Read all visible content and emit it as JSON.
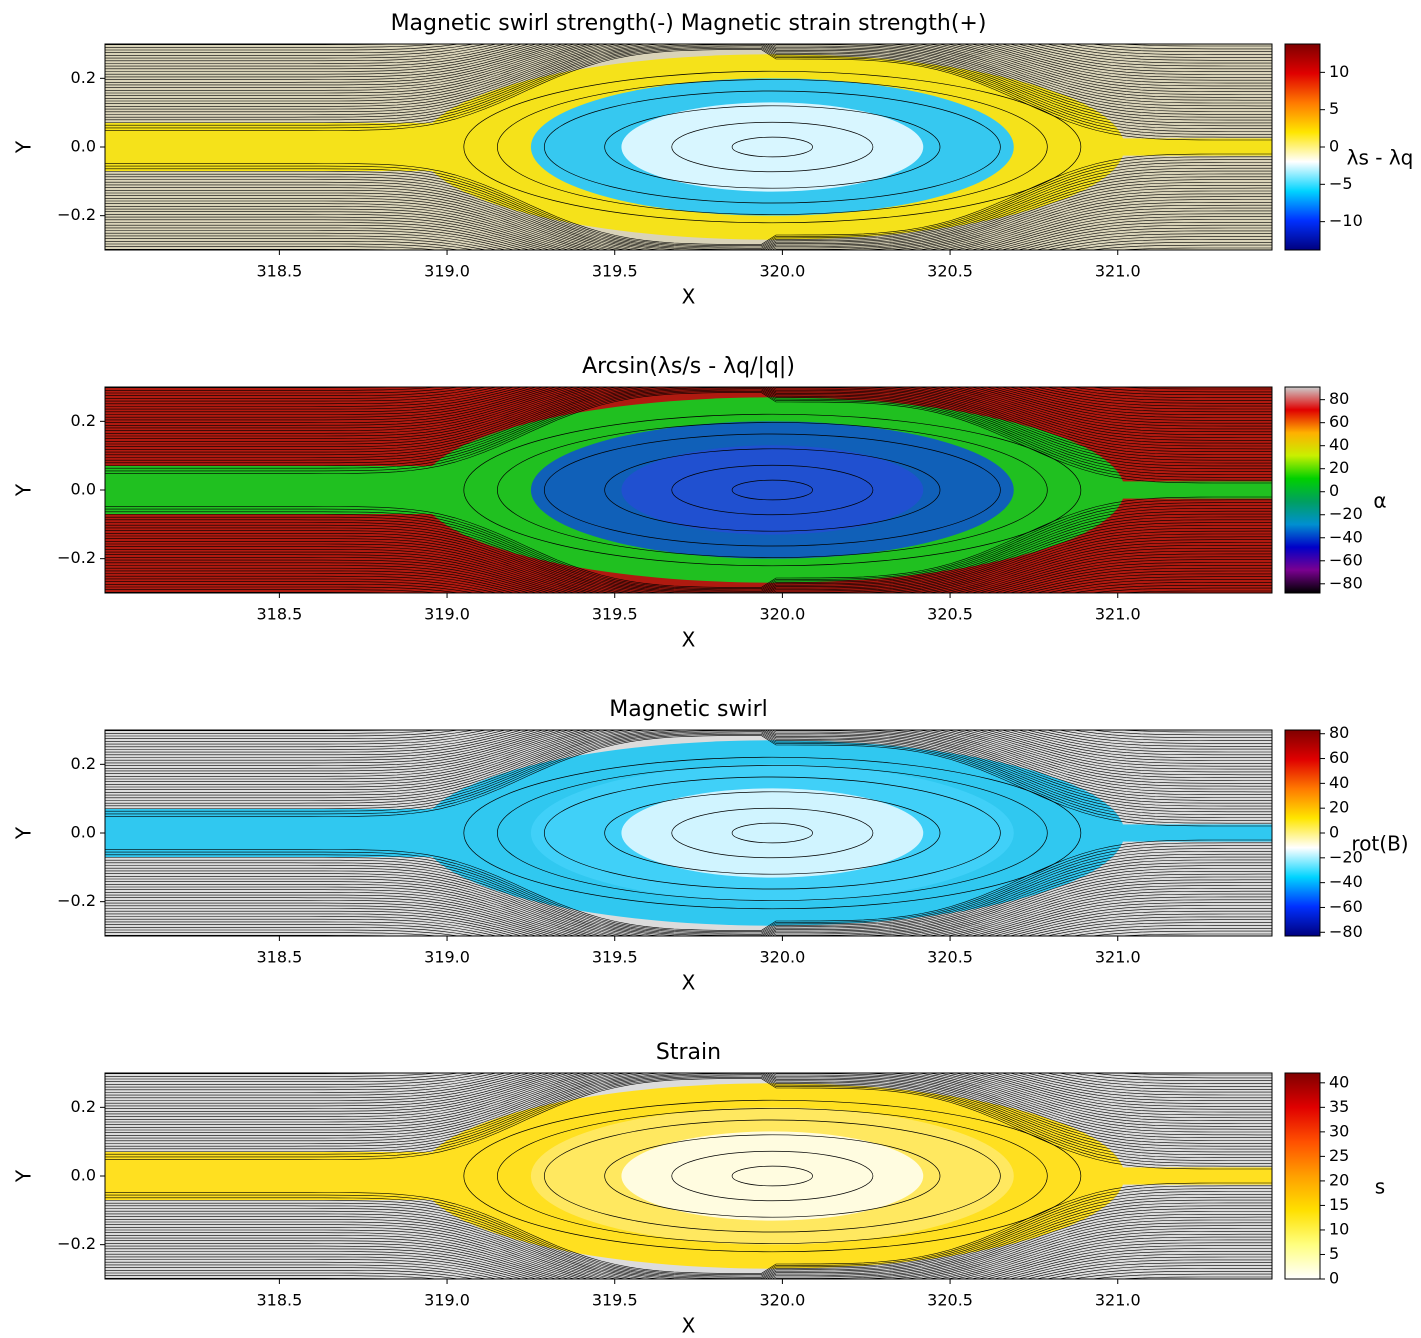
{
  "chart_data": [
    {
      "type": "heatmap",
      "title": "Magnetic swirl strength(-) Magnetic strain strength(+)",
      "xlabel": "X",
      "ylabel": "Y",
      "xlim": [
        317.98,
        321.46
      ],
      "ylim": [
        -0.3,
        0.3
      ],
      "xticks": [
        318.5,
        {
          "value": 319,
          "label": "319.0"
        },
        319.5,
        {
          "value": 320,
          "label": "320.0"
        },
        320.5,
        {
          "value": 321,
          "label": "321.0"
        }
      ],
      "yticks": [
        {
          "value": -0.2,
          "label": "−0.2"
        },
        {
          "value": 0,
          "label": "0.0"
        },
        0.2
      ],
      "colorbar": {
        "label": "λs - λq",
        "lim": [
          -13.8,
          13.8
        ],
        "ticks": [
          {
            "value": -10,
            "label": "−10"
          },
          {
            "value": -5,
            "label": "−5"
          },
          0,
          5,
          10
        ],
        "colormap": [
          "#00007f",
          "#0030ff",
          "#00d4ff",
          "#ffffff",
          "#ffe600",
          "#ff7a00",
          "#e00000",
          "#7f0000"
        ]
      }
    },
    {
      "type": "heatmap",
      "title": "Arcsin(λs/s - λq/|q|)",
      "xlabel": "X",
      "ylabel": "Y",
      "xlim": [
        317.98,
        321.46
      ],
      "ylim": [
        -0.3,
        0.3
      ],
      "xticks": [
        318.5,
        {
          "value": 319,
          "label": "319.0"
        },
        319.5,
        {
          "value": 320,
          "label": "320.0"
        },
        320.5,
        {
          "value": 321,
          "label": "321.0"
        }
      ],
      "yticks": [
        {
          "value": -0.2,
          "label": "−0.2"
        },
        {
          "value": 0,
          "label": "0.0"
        },
        0.2
      ],
      "colorbar": {
        "label": "α",
        "lim": [
          -88,
          91
        ],
        "ticks": [
          {
            "value": -80,
            "label": "−80"
          },
          {
            "value": -60,
            "label": "−60"
          },
          {
            "value": -40,
            "label": "−40"
          },
          {
            "value": -20,
            "label": "−20"
          },
          0,
          20,
          40,
          60,
          80
        ],
        "colormap": [
          "#000000",
          "#7a0090",
          "#0000c8",
          "#0090d0",
          "#00a060",
          "#00d000",
          "#c8f000",
          "#ffb000",
          "#e00000",
          "#cccccc"
        ]
      }
    },
    {
      "type": "heatmap",
      "title": "Magnetic swirl",
      "xlabel": "X",
      "ylabel": "Y",
      "xlim": [
        317.98,
        321.46
      ],
      "ylim": [
        -0.3,
        0.3
      ],
      "xticks": [
        318.5,
        {
          "value": 319,
          "label": "319.0"
        },
        319.5,
        {
          "value": 320,
          "label": "320.0"
        },
        320.5,
        {
          "value": 321,
          "label": "321.0"
        }
      ],
      "yticks": [
        {
          "value": -0.2,
          "label": "−0.2"
        },
        {
          "value": 0,
          "label": "0.0"
        },
        0.2
      ],
      "colorbar": {
        "label": "rot(B)",
        "lim": [
          -83,
          83
        ],
        "ticks": [
          {
            "value": -80,
            "label": "−80"
          },
          {
            "value": -60,
            "label": "−60"
          },
          {
            "value": -40,
            "label": "−40"
          },
          {
            "value": -20,
            "label": "−20"
          },
          0,
          20,
          40,
          60,
          80
        ],
        "colormap": [
          "#00007f",
          "#0030ff",
          "#00d4ff",
          "#ffffff",
          "#ffe600",
          "#ff7a00",
          "#e00000",
          "#7f0000"
        ]
      }
    },
    {
      "type": "heatmap",
      "title": "Strain",
      "xlabel": "X",
      "ylabel": "Y",
      "xlim": [
        317.98,
        321.46
      ],
      "ylim": [
        -0.3,
        0.3
      ],
      "xticks": [
        318.5,
        {
          "value": 319,
          "label": "319.0"
        },
        319.5,
        {
          "value": 320,
          "label": "320.0"
        },
        320.5,
        {
          "value": 321,
          "label": "321.0"
        }
      ],
      "yticks": [
        {
          "value": -0.2,
          "label": "−0.2"
        },
        {
          "value": 0,
          "label": "0.0"
        },
        0.2
      ],
      "colorbar": {
        "label": "s",
        "lim": [
          0,
          42
        ],
        "ticks": [
          0,
          5,
          10,
          15,
          20,
          25,
          30,
          35,
          40
        ],
        "colormap": [
          "#ffffff",
          "#ffff80",
          "#ffe000",
          "#ffa000",
          "#ff5000",
          "#e00000",
          "#800000"
        ]
      }
    }
  ]
}
